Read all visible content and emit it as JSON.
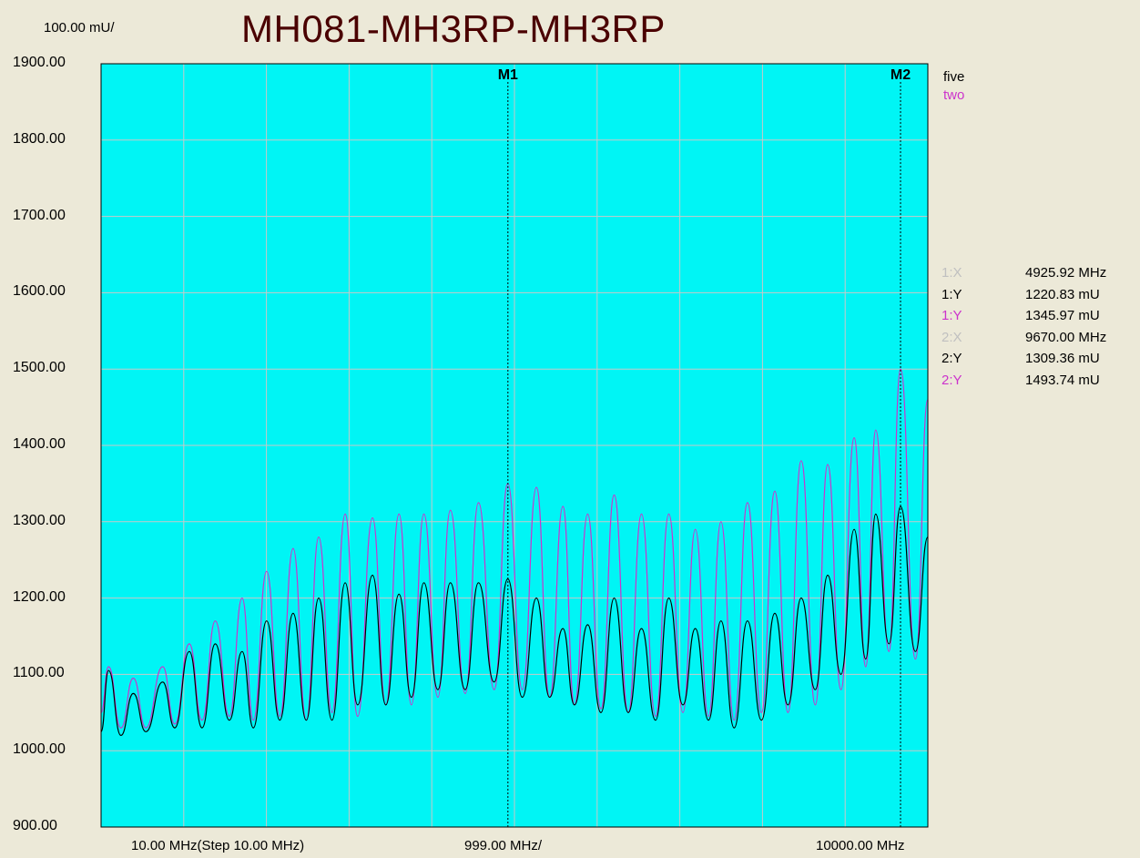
{
  "header": {
    "title": "MH081-MH3RP-MH3RP",
    "scale_label": "100.00 mU/"
  },
  "legend": [
    {
      "name": "five",
      "color": "#000000"
    },
    {
      "name": "two",
      "color": "#cc33cc"
    }
  ],
  "readouts": [
    {
      "label": "1:X",
      "value": "4925.92 MHz",
      "color": "#c0c0c0"
    },
    {
      "label": "1:Y",
      "value": "1220.83 mU",
      "color": "#000000"
    },
    {
      "label": "1:Y",
      "value": "1345.97 mU",
      "color": "#cc33cc"
    },
    {
      "label": "2:X",
      "value": "9670.00 MHz",
      "color": "#c0c0c0"
    },
    {
      "label": "2:Y",
      "value": "1309.36 mU",
      "color": "#000000"
    },
    {
      "label": "2:Y",
      "value": "1493.74 mU",
      "color": "#cc33cc"
    }
  ],
  "colors": {
    "plot_bg": "#00f5f5",
    "grid": "#c8c8c8",
    "series_five": "#000000",
    "series_two": "#cc33cc"
  },
  "chart_data": {
    "type": "line",
    "title": "MH081-MH3RP-MH3RP",
    "xlabel": "999.00 MHz/",
    "x_start_label": "10.00 MHz(Step 10.00 MHz)",
    "x_end_label": "10000.00 MHz",
    "xlim": [
      10,
      10000
    ],
    "ylim": [
      900,
      1900
    ],
    "yticks": [
      "1900.00",
      "1800.00",
      "1700.00",
      "1600.00",
      "1500.00",
      "1400.00",
      "1300.00",
      "1200.00",
      "1100.00",
      "1000.00",
      "900.00"
    ],
    "grid": true,
    "legend_position": "right",
    "markers": [
      {
        "label": "M1",
        "x": 4925.92
      },
      {
        "label": "M2",
        "x": 9670.0
      }
    ],
    "series": [
      {
        "name": "five",
        "peaks_x": [
          100,
          400,
          755,
          1076,
          1390,
          1714,
          2010,
          2330,
          2640,
          2960,
          3290,
          3610,
          3910,
          4230,
          4570,
          4925,
          5270,
          5590,
          5890,
          6210,
          6540,
          6870,
          7190,
          7500,
          7820,
          8150,
          8470,
          8790,
          9110,
          9370,
          9670,
          10000
        ],
        "peaks_y": [
          1105,
          1075,
          1090,
          1130,
          1140,
          1130,
          1170,
          1180,
          1200,
          1220,
          1230,
          1205,
          1220,
          1220,
          1220,
          1225,
          1200,
          1160,
          1165,
          1200,
          1160,
          1200,
          1160,
          1170,
          1170,
          1180,
          1200,
          1230,
          1290,
          1310,
          1320,
          1280
        ],
        "troughs_x": [
          10,
          250,
          550,
          900,
          1230,
          1560,
          1850,
          2170,
          2490,
          2800,
          3110,
          3450,
          3760,
          4080,
          4410,
          4760,
          5100,
          5430,
          5730,
          6050,
          6380,
          6710,
          7040,
          7350,
          7660,
          7990,
          8310,
          8640,
          8950,
          9250,
          9530,
          9850
        ],
        "troughs_y": [
          1025,
          1020,
          1025,
          1030,
          1030,
          1040,
          1030,
          1040,
          1040,
          1040,
          1060,
          1060,
          1070,
          1080,
          1080,
          1090,
          1070,
          1070,
          1060,
          1050,
          1050,
          1040,
          1060,
          1040,
          1030,
          1040,
          1060,
          1080,
          1100,
          1120,
          1140,
          1130
        ]
      },
      {
        "name": "two",
        "peaks_x": [
          100,
          400,
          755,
          1076,
          1390,
          1714,
          2010,
          2330,
          2640,
          2960,
          3290,
          3610,
          3910,
          4230,
          4570,
          4925,
          5270,
          5590,
          5890,
          6210,
          6540,
          6870,
          7190,
          7500,
          7820,
          8150,
          8470,
          8790,
          9110,
          9370,
          9670,
          10000
        ],
        "peaks_y": [
          1110,
          1095,
          1110,
          1140,
          1170,
          1200,
          1235,
          1265,
          1280,
          1310,
          1305,
          1310,
          1310,
          1315,
          1325,
          1350,
          1345,
          1320,
          1310,
          1335,
          1310,
          1310,
          1290,
          1300,
          1325,
          1340,
          1380,
          1375,
          1410,
          1420,
          1500,
          1460
        ],
        "troughs_x": [
          10,
          250,
          550,
          900,
          1230,
          1560,
          1850,
          2170,
          2490,
          2800,
          3110,
          3450,
          3760,
          4080,
          4410,
          4760,
          5100,
          5430,
          5730,
          6050,
          6380,
          6710,
          7040,
          7350,
          7660,
          7990,
          8310,
          8640,
          8950,
          9250,
          9530,
          9850
        ],
        "troughs_y": [
          1050,
          1030,
          1030,
          1035,
          1040,
          1045,
          1040,
          1045,
          1040,
          1050,
          1045,
          1060,
          1060,
          1070,
          1075,
          1080,
          1080,
          1070,
          1060,
          1055,
          1050,
          1045,
          1050,
          1045,
          1040,
          1050,
          1050,
          1060,
          1080,
          1110,
          1130,
          1120
        ]
      }
    ]
  }
}
